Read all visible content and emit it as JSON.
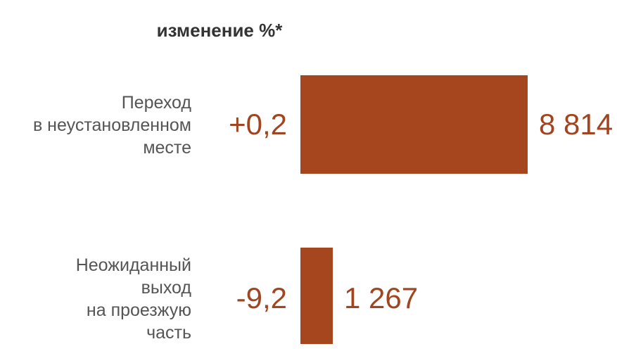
{
  "chart_data": {
    "type": "bar",
    "orientation": "horizontal",
    "column_header": "изменение %*",
    "categories": [
      [
        "Переход",
        "в неустановленном",
        "месте"
      ],
      [
        "Неожиданный",
        "выход",
        "на проезжую",
        "часть"
      ]
    ],
    "values": [
      8814,
      1267
    ],
    "value_labels": [
      "8 814",
      "1 267"
    ],
    "changes": [
      "+0,2",
      "-9,2"
    ],
    "bar_color": "#a5461e",
    "text_color": "#a0451f"
  }
}
